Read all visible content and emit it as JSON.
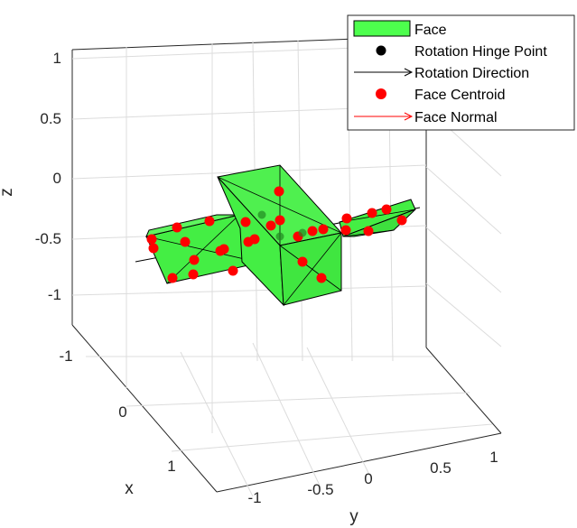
{
  "chart_data": {
    "type": "3d-mesh",
    "xlabel": "x",
    "ylabel": "y",
    "zlabel": "z",
    "x_ticks": [
      "-1",
      "0",
      "1"
    ],
    "y_ticks": [
      "-1",
      "-0.5",
      "0",
      "0.5",
      "1"
    ],
    "z_ticks": [
      "1",
      "0.5",
      "0",
      "-0.5",
      "-1"
    ],
    "xlim": [
      -1.2,
      1.2
    ],
    "ylim": [
      -1.1,
      1.1
    ],
    "zlim": [
      -1.2,
      1.1
    ],
    "grid": true,
    "legend_location": "top-right",
    "legend": [
      {
        "label": "Face",
        "marker": "patch",
        "color": "#4dff4d"
      },
      {
        "label": "Rotation Hinge Point",
        "marker": "dot",
        "color": "#000000"
      },
      {
        "label": "Rotation Direction",
        "marker": "arrow",
        "color": "#000000"
      },
      {
        "label": "Face Centroid",
        "marker": "dot",
        "color": "#ff0000"
      },
      {
        "label": "Face Normal",
        "marker": "arrow",
        "color": "#ff0000"
      }
    ],
    "colors": {
      "face": "#44ee44",
      "edge": "#000000",
      "centroid": "#ff0000",
      "hinge": "#000000",
      "grid": "#dcdcdc"
    }
  }
}
